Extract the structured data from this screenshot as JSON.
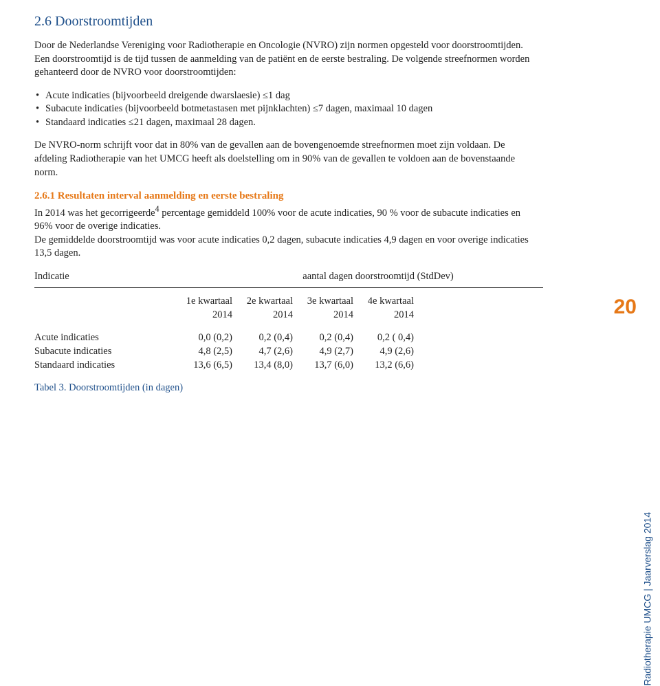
{
  "section": {
    "title": "2.6   Doorstroomtijden",
    "para1": "Door de Nederlandse Vereniging voor Radiotherapie en Oncologie (NVRO) zijn normen opgesteld voor doorstroomtijden. Een doorstroomtijd is de tijd tussen de aanmelding van de patiënt en de eerste bestraling. De volgende streefnormen worden gehanteerd door de NVRO voor doorstroomtijden:",
    "bullets": {
      "b1": "Acute indicaties (bijvoorbeeld dreigende dwarslaesie) ≤1 dag",
      "b2": "Subacute indicaties (bijvoorbeeld botmetastasen met pijnklachten) ≤7 dagen, maximaal 10 dagen",
      "b3": "Standaard indicaties ≤21 dagen, maximaal 28 dagen."
    },
    "para2": "De NVRO-norm schrijft voor dat in 80% van de gevallen aan de bovengenoemde streefnormen moet zijn voldaan. De afdeling Radiotherapie van het UMCG heeft als doelstelling om in 90% van de gevallen te voldoen aan de bovenstaande norm.",
    "subsection_title": "2.6.1 Resultaten interval aanmelding en eerste bestraling",
    "para3a": "In 2014 was het gecorrigeerde",
    "para3sup": "4",
    "para3b": " percentage gemiddeld 100% voor de acute indicaties, 90 % voor de subacute indicaties en 96% voor de overige indicaties.",
    "para4": "De gemiddelde doorstroomtijd was voor acute indicaties 0,2 dagen, subacute indicaties 4,9 dagen en voor overige indicaties 13,5 dagen."
  },
  "table": {
    "header_left": "Indicatie",
    "header_right": "aantal dagen doorstroomtijd (StdDev)",
    "cols": {
      "c1a": "1e kwartaal",
      "c1b": "2014",
      "c2a": "2e kwartaal",
      "c2b": "2014",
      "c3a": "3e kwartaal",
      "c3b": "2014",
      "c4a": "4e kwartaal",
      "c4b": "2014"
    },
    "rows": {
      "r1": {
        "label": "Acute indicaties",
        "c1": "0,0 (0,2)",
        "c2": "0,2 (0,4)",
        "c3": "0,2 (0,4)",
        "c4": "0,2 ( 0,4)"
      },
      "r2": {
        "label": "Subacute indicaties",
        "c1": "4,8 (2,5)",
        "c2": "4,7 (2,6)",
        "c3": "4,9 (2,7)",
        "c4": "4,9 (2,6)"
      },
      "r3": {
        "label": "Standaard indicaties",
        "c1": "13,6 (6,5)",
        "c2": "13,4 (8,0)",
        "c3": "13,7 (6,0)",
        "c4": "13,2 (6,6)"
      }
    },
    "caption": "Tabel 3. Doorstroomtijden (in dagen)"
  },
  "page": {
    "number": "20",
    "side": "Radiotherapie UMCG  |  Jaarverslag 2014"
  },
  "colors": {
    "heading": "#1e4f8a",
    "accent": "#e67817",
    "text": "#222222",
    "background": "#ffffff"
  }
}
